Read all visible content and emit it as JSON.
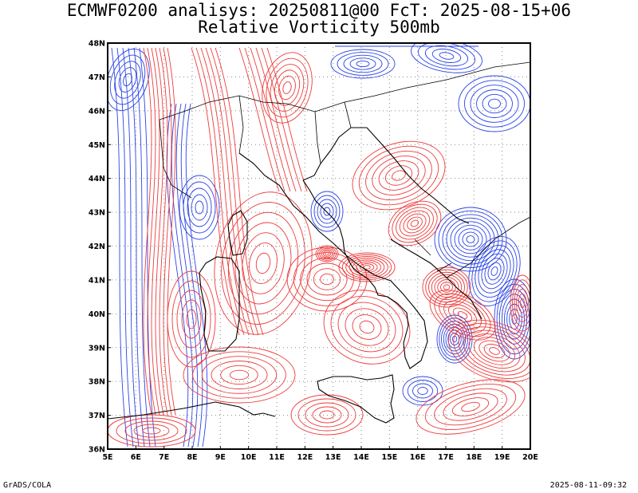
{
  "title_line1": "ECMWF0200 analisys: 20250811@00 FcT: 2025-08-15+06",
  "title_line2": "Relative Vorticity 500mb",
  "footer_left": "GrADS/COLA",
  "footer_right": "2025-08-11-09:32",
  "map": {
    "lon_labels": [
      "5E",
      "6E",
      "7E",
      "8E",
      "9E",
      "10E",
      "11E",
      "12E",
      "13E",
      "14E",
      "15E",
      "16E",
      "17E",
      "18E",
      "19E",
      "20E"
    ],
    "lat_labels": [
      "48N",
      "47N",
      "46N",
      "45N",
      "44N",
      "43N",
      "42N",
      "41N",
      "40N",
      "39N",
      "38N",
      "37N",
      "36N"
    ],
    "lon_range": [
      5,
      20
    ],
    "lat_range": [
      36,
      48
    ],
    "grid": "dotted",
    "colors": {
      "positive_contour": "#ef3b3b",
      "negative_contour": "#2b44e8",
      "coastline": "#000000",
      "grid": "#888888"
    }
  }
}
